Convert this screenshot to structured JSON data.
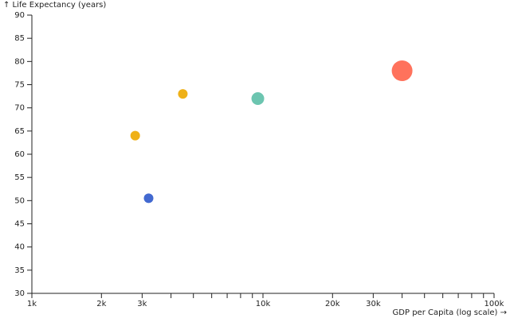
{
  "chart_data": {
    "type": "scatter",
    "x_label": "GDP per Capita (log scale) →",
    "y_label": "↑ Life Expectancy (years)",
    "x": [
      2800,
      4500,
      3200,
      9500,
      40000
    ],
    "values": [
      64,
      73,
      50.5,
      72,
      78
    ],
    "sizes": [
      6,
      6,
      6,
      8,
      13
    ],
    "colors": [
      "#efb118",
      "#efb118",
      "#4269d0",
      "#6cc5b0",
      "#ff725c"
    ],
    "xscale": "log",
    "xlim": [
      1000,
      100000
    ],
    "xticks": [
      {
        "value": 1000,
        "label": "1k"
      },
      {
        "value": 2000,
        "label": "2k"
      },
      {
        "value": 3000,
        "label": "3k"
      },
      {
        "value": 10000,
        "label": "10k"
      },
      {
        "value": 20000,
        "label": "20k"
      },
      {
        "value": 30000,
        "label": "30k"
      },
      {
        "value": 100000,
        "label": "100k"
      }
    ],
    "xminor_ticks": [
      4000,
      5000,
      6000,
      7000,
      8000,
      9000,
      40000,
      50000,
      60000,
      70000,
      80000,
      90000
    ],
    "ylim": [
      30,
      90
    ],
    "yticks": [
      30,
      35,
      40,
      45,
      50,
      55,
      60,
      65,
      70,
      75,
      80,
      85,
      90
    ],
    "grid": false
  }
}
